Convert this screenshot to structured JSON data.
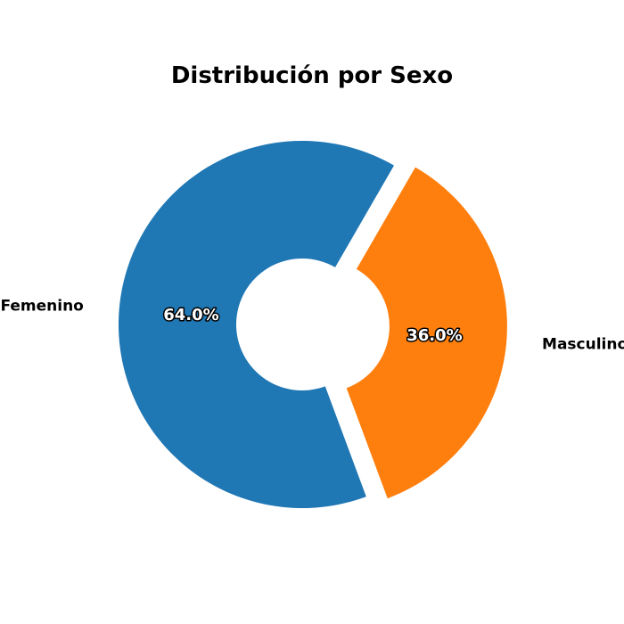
{
  "chart_data": {
    "type": "pie",
    "variant": "donut",
    "title": "Distribución por Sexo",
    "categories": [
      "Femenino",
      "Masculino"
    ],
    "values": [
      64.0,
      36.0
    ],
    "value_labels": [
      "64.0%",
      "36.0%"
    ],
    "colors": [
      "#1f77b4",
      "#ff7f0e"
    ],
    "exploded": [
      false,
      true
    ],
    "legend": "none"
  }
}
